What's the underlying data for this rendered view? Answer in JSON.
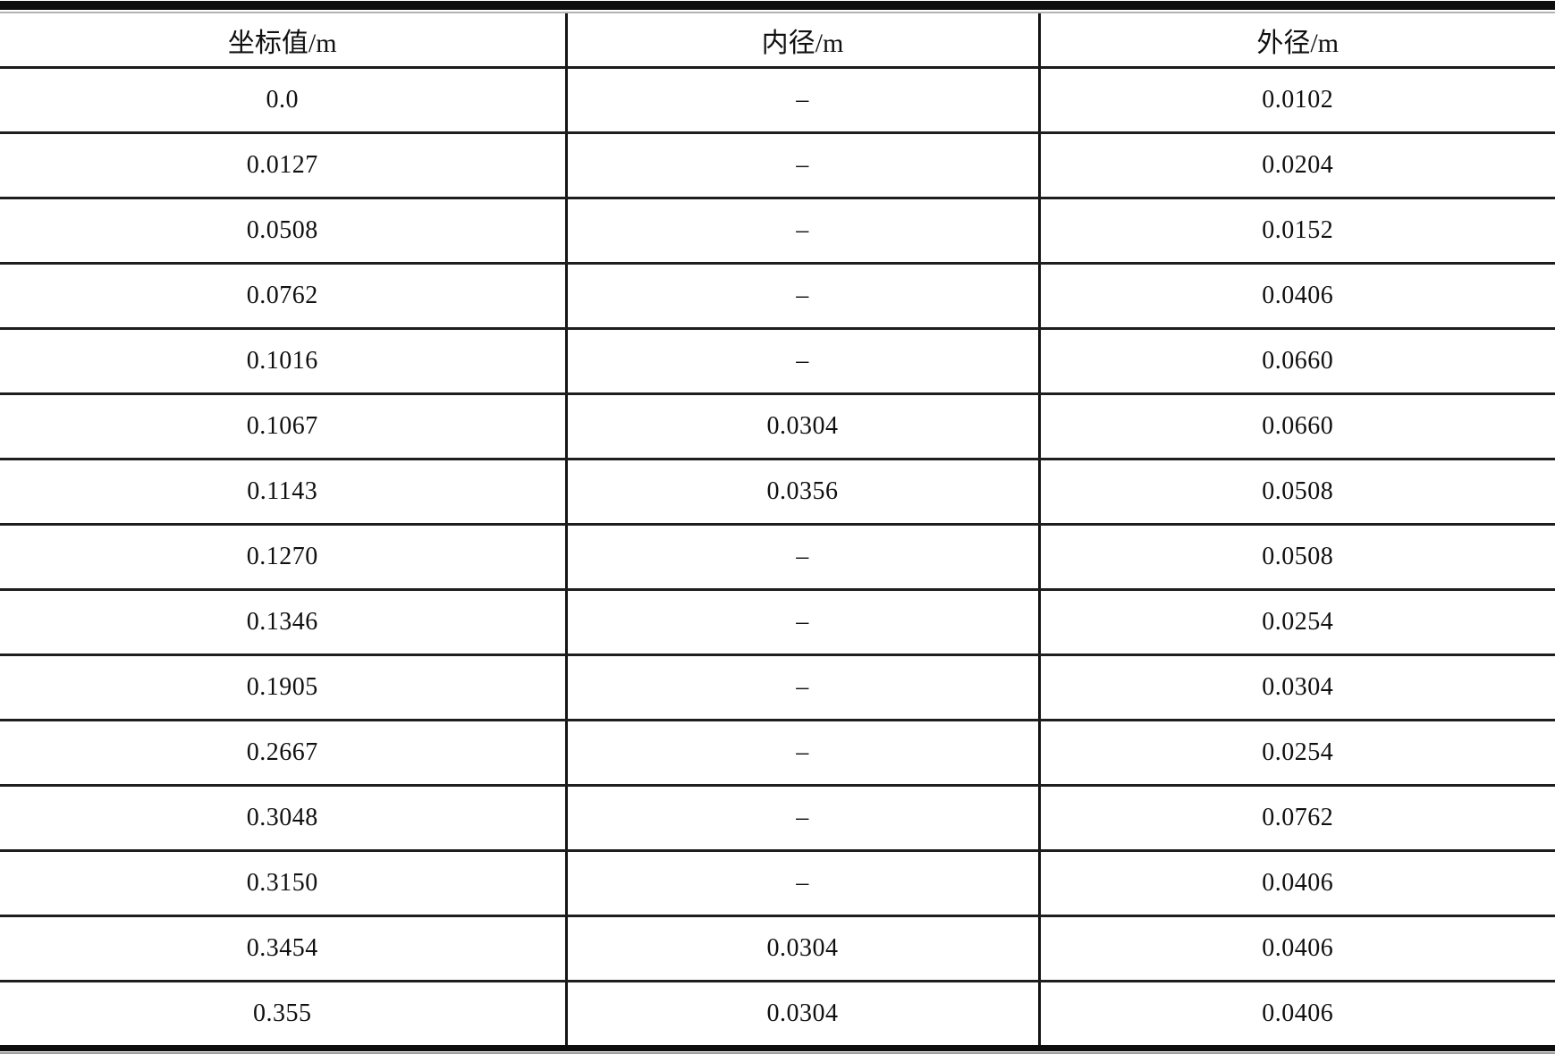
{
  "colors": {
    "background": "#ffffff",
    "text": "#101010",
    "rule_thick": "#0e0e0e",
    "rule_thin": "#b3b3b3",
    "grid_line": "#1b1b1b"
  },
  "empty_marker": "–",
  "chart_data": {
    "type": "table",
    "columns": [
      "坐标值/m",
      "内径/m",
      "外径/m"
    ],
    "rows": [
      [
        "0.0",
        "–",
        "0.0102"
      ],
      [
        "0.0127",
        "–",
        "0.0204"
      ],
      [
        "0.0508",
        "–",
        "0.0152"
      ],
      [
        "0.0762",
        "–",
        "0.0406"
      ],
      [
        "0.1016",
        "–",
        "0.0660"
      ],
      [
        "0.1067",
        "0.0304",
        "0.0660"
      ],
      [
        "0.1143",
        "0.0356",
        "0.0508"
      ],
      [
        "0.1270",
        "–",
        "0.0508"
      ],
      [
        "0.1346",
        "–",
        "0.0254"
      ],
      [
        "0.1905",
        "–",
        "0.0304"
      ],
      [
        "0.2667",
        "–",
        "0.0254"
      ],
      [
        "0.3048",
        "–",
        "0.0762"
      ],
      [
        "0.3150",
        "–",
        "0.0406"
      ],
      [
        "0.3454",
        "0.0304",
        "0.0406"
      ],
      [
        "0.355",
        "0.0304",
        "0.0406"
      ]
    ]
  }
}
